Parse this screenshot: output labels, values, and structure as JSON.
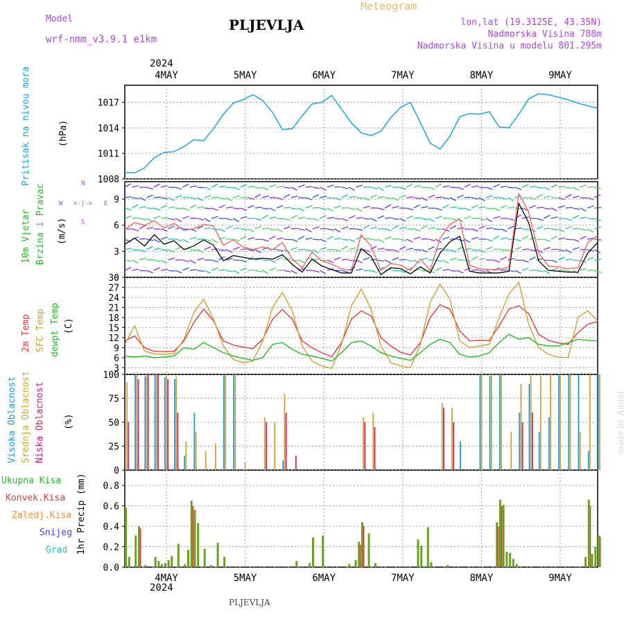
{
  "header": {
    "model_label": "Model",
    "model_name": "wrf-nmm_v3.9.1 e1km",
    "title": "PLJEVLJA",
    "meteogram": "Meteogram",
    "lonlat": "lon,lat (19.3125E, 43.35N)",
    "altitude": "Nadmorska Visina 788m",
    "model_altitude": "Nadmorska Visina u modelu 801.295m",
    "year_top": "2024",
    "year_bottom": "2024",
    "footer": "PLJEVLJA",
    "watermark": "made by Angel"
  },
  "colors": {
    "pressure": "#1aa5e6",
    "wind_speed": "#000000",
    "gust": "#ff5a5a",
    "temp2m": "#e8383a",
    "sfc_temp": "#d4a030",
    "dewpt": "#20c020",
    "high_cloud": "#1a9be0",
    "mid_cloud": "#d4a030",
    "low_cloud": "#d0206a",
    "total_precip": "#20c020",
    "conv_precip": "#e83838",
    "frz_precip": "#ff8c30",
    "snow": "#4040e0",
    "hail": "#20c0c0"
  },
  "chart_data": [
    {
      "type": "line",
      "panel": "pressure",
      "ylabel_1": "Pritisak na nivou mora",
      "ylabel_2": "(hPa)",
      "ylim": [
        1008,
        1019
      ],
      "yticks": [
        1008,
        1011,
        1014,
        1017
      ],
      "xticks": [
        "4MAY",
        "5MAY",
        "6MAY",
        "7MAY",
        "8MAY",
        "9MAY"
      ],
      "grid": true,
      "x_hours": [
        0,
        3,
        6,
        9,
        12,
        15,
        18,
        21,
        24,
        27,
        30,
        33,
        36,
        39,
        42,
        45,
        48,
        51,
        54,
        57,
        60,
        63,
        66,
        69,
        72,
        75,
        78,
        81,
        84,
        87,
        90,
        93,
        96,
        99,
        102,
        105,
        108,
        111,
        114,
        117,
        120,
        123,
        126,
        129,
        132,
        135,
        138,
        141,
        144
      ],
      "values": [
        1008.8,
        1008.7,
        1009.3,
        1010.5,
        1011.1,
        1011.2,
        1011.8,
        1012.6,
        1012.5,
        1013.9,
        1015.6,
        1016.9,
        1017.3,
        1017.9,
        1017.2,
        1015.8,
        1013.8,
        1013.9,
        1015.4,
        1016.8,
        1017.0,
        1017.8,
        1016.2,
        1014.6,
        1013.4,
        1013.1,
        1013.6,
        1015.2,
        1016.4,
        1017.0,
        1014.6,
        1012.2,
        1011.5,
        1013.0,
        1015.3,
        1015.7,
        1015.6,
        1015.9,
        1014.1,
        1014.0,
        1015.6,
        1017.4,
        1018.0,
        1017.9,
        1017.6,
        1017.3,
        1016.9,
        1016.6,
        1016.3
      ]
    },
    {
      "type": "line",
      "panel": "wind",
      "ylabel_1": "10m Vjetar",
      "ylabel_2": "Brzina i Pravac",
      "ylabel_3": "(m/s)",
      "compass_n": "N",
      "compass_s": "S",
      "compass_w": "W",
      "compass_e": "E",
      "ylim": [
        0,
        11
      ],
      "yticks": [
        0,
        3,
        6,
        9
      ],
      "grid": true,
      "x_hours": [
        0,
        3,
        6,
        9,
        12,
        15,
        18,
        21,
        24,
        27,
        30,
        33,
        36,
        39,
        42,
        45,
        48,
        51,
        54,
        57,
        60,
        63,
        66,
        69,
        72,
        75,
        78,
        81,
        84,
        87,
        90,
        93,
        96,
        99,
        102,
        105,
        108,
        111,
        114,
        117,
        120,
        123,
        126,
        129,
        132,
        135,
        138,
        141,
        144
      ],
      "series": [
        {
          "name": "speed",
          "values": [
            3.8,
            4.5,
            3.6,
            4.9,
            3.8,
            4.2,
            3.2,
            3.6,
            4.3,
            3.7,
            1.9,
            2.5,
            2.3,
            2.1,
            2.2,
            2.1,
            2.6,
            1.5,
            0.6,
            2.1,
            1.3,
            0.9,
            0.5,
            0.5,
            3.3,
            2.4,
            0.3,
            1.1,
            1.0,
            0.4,
            1.2,
            0.5,
            2.8,
            4.1,
            4.7,
            0.7,
            0.5,
            0.5,
            0.5,
            0.7,
            8.5,
            6.3,
            1.9,
            0.8,
            0.7,
            0.6,
            0.6,
            2.8,
            4.0
          ]
        },
        {
          "name": "gust",
          "values": [
            5.5,
            6.3,
            6.0,
            6.5,
            5.7,
            6.2,
            5.4,
            5.6,
            6.1,
            5.9,
            3.7,
            4.3,
            3.5,
            3.2,
            3.5,
            3.2,
            4.0,
            2.1,
            1.1,
            2.9,
            1.9,
            1.5,
            1.0,
            0.8,
            4.9,
            3.6,
            0.8,
            1.6,
            1.4,
            0.8,
            2.1,
            0.8,
            4.5,
            6.1,
            6.7,
            1.4,
            1.0,
            0.9,
            0.9,
            1.2,
            9.6,
            7.5,
            2.8,
            1.3,
            1.2,
            1.0,
            1.1,
            4.0,
            4.8
          ]
        }
      ]
    },
    {
      "type": "line",
      "panel": "temperature",
      "ylabel_1": "2m Temp",
      "ylabel_2": "SFC Temp",
      "ylabel_3": "dewpt Temp",
      "ylabel_4": "(C)",
      "ylim": [
        1,
        30
      ],
      "yticks": [
        3,
        6,
        9,
        12,
        15,
        18,
        21,
        24,
        27,
        30
      ],
      "grid": true,
      "x_hours": [
        0,
        3,
        6,
        9,
        12,
        15,
        18,
        21,
        24,
        27,
        30,
        33,
        36,
        39,
        42,
        45,
        48,
        51,
        54,
        57,
        60,
        63,
        66,
        69,
        72,
        75,
        78,
        81,
        84,
        87,
        90,
        93,
        96,
        99,
        102,
        105,
        108,
        111,
        114,
        117,
        120,
        123,
        126,
        129,
        132,
        135,
        138,
        141,
        144
      ],
      "series": [
        {
          "name": "2m Temp",
          "values": [
            11.0,
            12.5,
            9.0,
            7.9,
            7.8,
            7.9,
            11.0,
            16.5,
            20.5,
            17.0,
            11.0,
            9.8,
            9.2,
            8.7,
            11.5,
            17.5,
            20.4,
            17.5,
            11.0,
            9.0,
            7.5,
            6.3,
            10.5,
            17.5,
            20.0,
            18.5,
            12.0,
            9.5,
            7.6,
            6.8,
            10.5,
            18.0,
            21.8,
            20.5,
            14.0,
            11.0,
            11.2,
            11.1,
            15.5,
            20.5,
            21.5,
            19.2,
            13.0,
            11.2,
            10.4,
            10.0,
            13.5,
            16.0,
            16.8
          ]
        },
        {
          "name": "SFC Temp",
          "values": [
            10.0,
            15.5,
            8.0,
            7.1,
            7.0,
            7.2,
            11.5,
            19.5,
            23.5,
            17.5,
            9.5,
            5.5,
            4.5,
            5.0,
            11.0,
            21.0,
            25.5,
            20.0,
            9.5,
            5.0,
            3.5,
            2.8,
            10.0,
            21.5,
            26.5,
            20.5,
            9.5,
            4.5,
            3.5,
            3.0,
            10.0,
            22.5,
            28.0,
            23.5,
            11.0,
            9.0,
            9.5,
            10.0,
            18.0,
            25.0,
            28.5,
            16.0,
            9.0,
            7.0,
            6.2,
            6.0,
            18.0,
            20.0,
            17.0
          ]
        },
        {
          "name": "dewpt Temp",
          "values": [
            6.5,
            6.2,
            6.5,
            6.0,
            6.2,
            6.5,
            9.0,
            8.5,
            10.5,
            9.0,
            7.5,
            6.5,
            5.8,
            5.2,
            6.0,
            10.0,
            10.5,
            8.5,
            7.0,
            6.5,
            5.8,
            5.0,
            7.5,
            10.5,
            11.0,
            9.5,
            7.5,
            6.5,
            5.8,
            5.2,
            7.5,
            10.0,
            11.5,
            10.5,
            7.0,
            6.2,
            6.5,
            7.5,
            10.5,
            13.0,
            11.5,
            12.0,
            10.0,
            9.5,
            9.5,
            10.5,
            11.5,
            11.2,
            11.0
          ]
        }
      ]
    },
    {
      "type": "bar",
      "panel": "clouds",
      "ylabel_1": "Visoka Oblacnost",
      "ylabel_2": "Srednja Oblacnost",
      "ylabel_3": "Niska Oblacnost",
      "ylabel_4": "(%)",
      "ylim": [
        0,
        100
      ],
      "yticks": [
        0,
        25,
        50,
        75,
        100
      ],
      "grid": true,
      "x_hours": [
        0,
        3,
        6,
        9,
        12,
        15,
        18,
        21,
        24,
        27,
        30,
        33,
        36,
        39,
        42,
        45,
        48,
        51,
        54,
        57,
        60,
        63,
        66,
        69,
        72,
        75,
        78,
        81,
        84,
        87,
        90,
        93,
        96,
        99,
        102,
        105,
        108,
        111,
        114,
        117,
        120,
        123,
        126,
        129,
        132,
        135,
        138,
        141,
        144
      ],
      "series": [
        {
          "name": "Visoka",
          "values": [
            0,
            100,
            98,
            100,
            97,
            95,
            15,
            60,
            0,
            0,
            100,
            100,
            0,
            0,
            0,
            0,
            10,
            0,
            0,
            0,
            0,
            0,
            0,
            0,
            0,
            0,
            0,
            0,
            0,
            0,
            0,
            0,
            0,
            0,
            30,
            0,
            100,
            98,
            100,
            0,
            60,
            90,
            40,
            55,
            100,
            100,
            100,
            20,
            100
          ]
        },
        {
          "name": "Srednja",
          "values": [
            92,
            100,
            100,
            100,
            100,
            98,
            30,
            40,
            20,
            28,
            100,
            100,
            8,
            0,
            55,
            50,
            80,
            0,
            0,
            0,
            0,
            0,
            0,
            0,
            55,
            60,
            0,
            0,
            0,
            0,
            0,
            0,
            70,
            65,
            0,
            0,
            100,
            100,
            100,
            40,
            90,
            100,
            100,
            100,
            100,
            100,
            40,
            100,
            100
          ]
        },
        {
          "name": "Niska",
          "values": [
            50,
            95,
            100,
            100,
            95,
            60,
            0,
            0,
            0,
            0,
            0,
            0,
            0,
            0,
            50,
            0,
            60,
            15,
            0,
            0,
            0,
            0,
            0,
            0,
            50,
            45,
            0,
            0,
            0,
            0,
            0,
            0,
            65,
            50,
            0,
            0,
            0,
            0,
            0,
            0,
            50,
            60,
            0,
            0,
            0,
            0,
            0,
            0,
            0
          ]
        }
      ]
    },
    {
      "type": "bar",
      "panel": "precipitation",
      "legend_total": "Ukupna Kisa",
      "legend_conv": "Konvek.Kisa",
      "legend_frz": "Zaledj.Kisa",
      "legend_snow": "Snijeg",
      "legend_hail": "Grad",
      "ylabel": "1hr Precip (mm)",
      "ylim": [
        0,
        0.95
      ],
      "yticks": [
        0,
        0.2,
        0.4,
        0.6,
        0.8
      ],
      "grid": true,
      "x_hours": [
        0,
        1,
        3,
        4,
        6,
        9,
        10,
        11,
        12,
        13,
        14,
        16,
        18,
        19,
        20,
        21,
        22,
        24,
        26,
        28,
        30,
        52,
        56,
        57,
        60,
        68,
        70,
        71,
        72,
        74,
        76,
        89,
        90,
        92,
        93,
        98,
        113,
        114,
        115,
        116,
        117,
        118,
        119,
        120,
        140,
        141,
        142,
        143,
        144
      ],
      "values": [
        0.58,
        0.1,
        0.31,
        0.4,
        0.02,
        0.1,
        0.06,
        0.03,
        0.04,
        0.07,
        0.11,
        0.23,
        0.03,
        0.17,
        0.65,
        0.56,
        0.43,
        0.18,
        0.02,
        0.24,
        0.1,
        0.06,
        0.04,
        0.29,
        0.31,
        0.03,
        0.07,
        0.25,
        0.44,
        0.33,
        0.04,
        0.27,
        0.21,
        0.39,
        0.05,
        0.02,
        0.44,
        0.66,
        0.61,
        0.15,
        0.14,
        0.08,
        0.03,
        0.01,
        0.1,
        0.66,
        0.13,
        0.2,
        0.31
      ],
      "conv": [
        0,
        0,
        0,
        0.38,
        0,
        0,
        0,
        0,
        0,
        0,
        0,
        0,
        0,
        0,
        0.6,
        0,
        0,
        0,
        0,
        0,
        0,
        0,
        0,
        0,
        0,
        0,
        0,
        0.22,
        0.4,
        0,
        0,
        0,
        0,
        0,
        0,
        0,
        0.4,
        0.6,
        0,
        0,
        0,
        0,
        0,
        0,
        0,
        0.6,
        0,
        0,
        0.3
      ]
    }
  ],
  "xaxis": {
    "labels": [
      "4MAY",
      "5MAY",
      "6MAY",
      "7MAY",
      "8MAY",
      "9MAY"
    ]
  }
}
